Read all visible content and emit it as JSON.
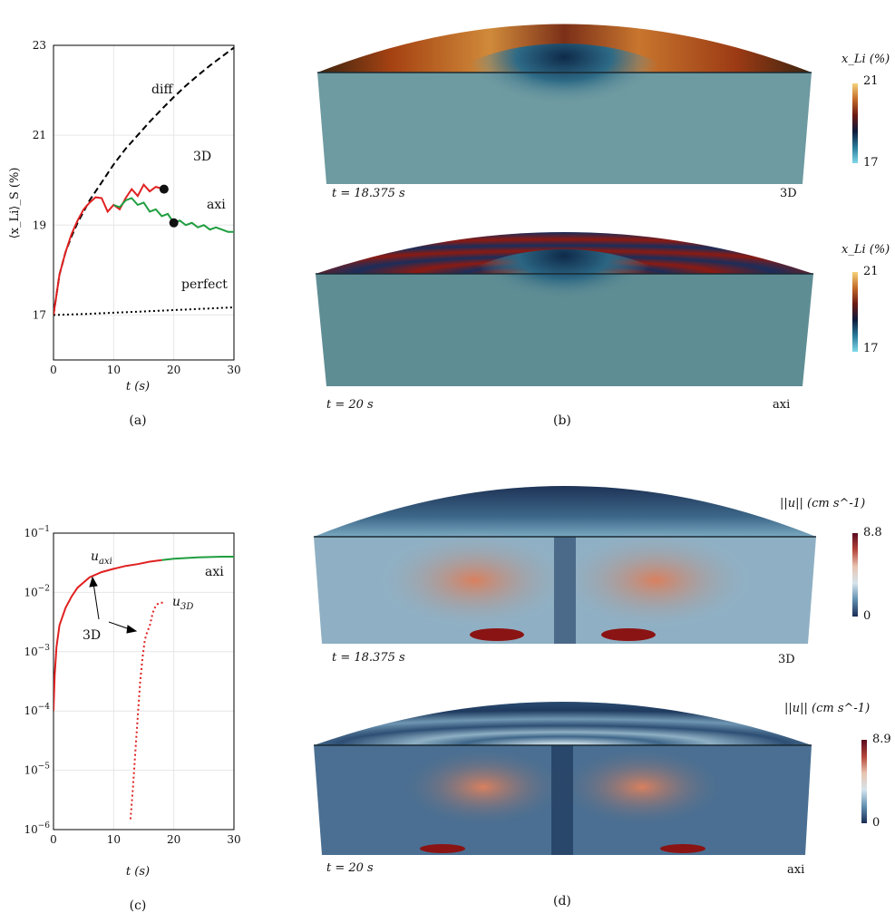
{
  "chart_data": [
    {
      "type": "line",
      "panel": "(a)",
      "xlabel": "t (s)",
      "ylabel": "⟨x_Li⟩_S (%)",
      "xlim": [
        0,
        30
      ],
      "ylim": [
        16,
        23
      ],
      "xticks": [
        "0",
        "10",
        "20",
        "30"
      ],
      "yticks": [
        "17",
        "19",
        "21",
        "23"
      ],
      "grid": true,
      "series": [
        {
          "name": "diff",
          "color": "#000000",
          "style": "dashed",
          "x": [
            0,
            1,
            2,
            3,
            4,
            5,
            6,
            8,
            10,
            12,
            14,
            16,
            18,
            20,
            22,
            24,
            26,
            28,
            30
          ],
          "y": [
            17.0,
            17.9,
            18.4,
            18.75,
            19.05,
            19.3,
            19.55,
            19.95,
            20.35,
            20.7,
            21.0,
            21.3,
            21.58,
            21.85,
            22.1,
            22.33,
            22.55,
            22.75,
            22.95
          ]
        },
        {
          "name": "perfect",
          "color": "#000000",
          "style": "dotted",
          "x": [
            0,
            5,
            10,
            15,
            20,
            25,
            30
          ],
          "y": [
            17.0,
            17.02,
            17.05,
            17.08,
            17.11,
            17.14,
            17.17
          ]
        },
        {
          "name": "3D",
          "color": "#e02020",
          "style": "solid",
          "x": [
            0,
            1,
            2,
            3,
            4,
            5,
            6,
            7,
            8,
            9,
            10,
            11,
            12,
            13,
            14,
            15,
            16,
            17,
            18.375
          ],
          "y": [
            17.0,
            17.9,
            18.4,
            18.8,
            19.1,
            19.35,
            19.5,
            19.62,
            19.6,
            19.3,
            19.45,
            19.35,
            19.6,
            19.8,
            19.65,
            19.9,
            19.75,
            19.85,
            19.8
          ]
        },
        {
          "name": "axi",
          "color": "#1f9e3f",
          "style": "solid",
          "x": [
            10,
            11,
            12,
            13,
            14,
            15,
            16,
            17,
            18,
            19,
            20,
            21,
            22,
            23,
            24,
            25,
            26,
            27,
            28,
            29,
            30
          ],
          "y": [
            19.45,
            19.4,
            19.55,
            19.6,
            19.45,
            19.5,
            19.3,
            19.35,
            19.2,
            19.25,
            19.05,
            19.1,
            19.0,
            19.05,
            18.95,
            19.0,
            18.9,
            18.95,
            18.9,
            18.85,
            18.85
          ]
        }
      ],
      "markers": [
        {
          "series": "3D",
          "x": 18.375,
          "y": 19.8
        },
        {
          "series": "axi",
          "x": 20,
          "y": 19.05
        }
      ],
      "annotations": [
        "diff",
        "3D",
        "axi",
        "perfect"
      ]
    },
    {
      "type": "line",
      "panel": "(c)",
      "xlabel": "t (s)",
      "ylabel": "",
      "yscale": "log",
      "xlim": [
        0,
        30
      ],
      "ylim": [
        1e-06,
        0.1
      ],
      "xticks": [
        "0",
        "10",
        "20",
        "30"
      ],
      "yticks": [
        "10^-6",
        "10^-5",
        "10^-4",
        "10^-3",
        "10^-2",
        "10^-1"
      ],
      "grid": true,
      "series": [
        {
          "name": "u_axi",
          "color": "#e02020",
          "style": "solid",
          "x": [
            0,
            0.2,
            0.5,
            1,
            2,
            3,
            4,
            6,
            8,
            10,
            12,
            14,
            16,
            18
          ],
          "y": [
            0.0001,
            0.0004,
            0.0012,
            0.0028,
            0.0055,
            0.0085,
            0.012,
            0.018,
            0.022,
            0.025,
            0.028,
            0.03,
            0.033,
            0.035
          ]
        },
        {
          "name": "axi",
          "color": "#1f9e3f",
          "style": "solid",
          "x": [
            18,
            20,
            22,
            24,
            26,
            28,
            30
          ],
          "y": [
            0.035,
            0.037,
            0.038,
            0.039,
            0.0395,
            0.04,
            0.04
          ]
        },
        {
          "name": "u_3D",
          "color": "#e02020",
          "style": "dotted",
          "x": [
            12.8,
            13.2,
            13.6,
            14.0,
            14.4,
            14.8,
            15.2,
            15.6,
            16.0,
            16.5,
            17.0,
            17.5,
            18.375
          ],
          "y": [
            1.5e-06,
            5e-06,
            2e-05,
            8e-05,
            0.0003,
            0.0008,
            0.0016,
            0.0022,
            0.0027,
            0.0045,
            0.006,
            0.0066,
            0.0068
          ]
        }
      ],
      "annotations": [
        "u_axi",
        "axi",
        "u_3D",
        "3D"
      ]
    }
  ],
  "panels": {
    "a": "(a)",
    "b": "(b)",
    "c": "(c)",
    "d": "(d)"
  },
  "renders": {
    "b_top": {
      "time": "t = 18.375 s",
      "label": "3D",
      "cbar_title": "x_Li (%)",
      "cbar_max": "21",
      "cbar_min": "17"
    },
    "b_bottom": {
      "time": "t = 20 s",
      "label": "axi",
      "cbar_title": "x_Li (%)",
      "cbar_max": "21",
      "cbar_min": "17"
    },
    "d_top": {
      "time": "t = 18.375 s",
      "label": "3D",
      "cbar_title": "||u|| (cm s^-1)",
      "cbar_max": "8.8",
      "cbar_min": "0"
    },
    "d_bottom": {
      "time": "t = 20 s",
      "label": "axi",
      "cbar_title": "||u|| (cm s^-1)",
      "cbar_max": "8.9",
      "cbar_min": "0"
    }
  },
  "colors": {
    "red": "#e02020",
    "green": "#1f9e3f",
    "concentration_bg": "#5f8d94",
    "velocity_bg": "#3a5d80"
  }
}
